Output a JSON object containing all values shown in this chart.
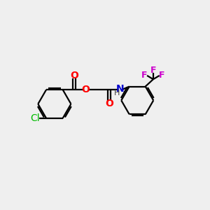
{
  "bg_color": "#efefef",
  "bond_color": "#000000",
  "atom_colors": {
    "O": "#ff0000",
    "N": "#0000cc",
    "Cl": "#00bb00",
    "F": "#cc00cc",
    "H": "#404040"
  },
  "font_size_atom": 10,
  "font_size_f": 9,
  "font_size_h": 8,
  "figsize": [
    3.0,
    3.0
  ],
  "dpi": 100
}
